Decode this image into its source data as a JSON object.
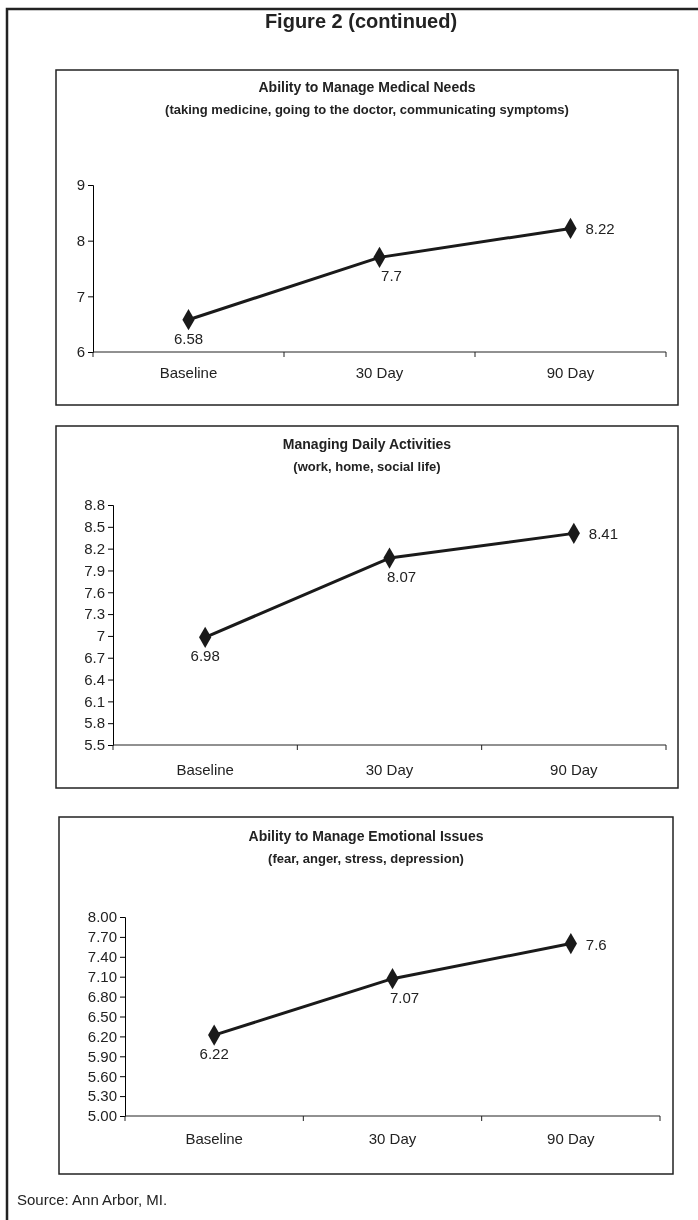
{
  "chart_data": [
    {
      "type": "line",
      "title": "Ability to Manage Medical Needs",
      "subtitle": "(taking medicine, going to the doctor,  communicating symptoms)",
      "annotations": [
        "Figure 2 (continued)"
      ],
      "categories": [
        "Baseline",
        "30 Day",
        "90 Day"
      ],
      "series": [
        {
          "color": "#1a1a1a",
          "values": [
            6.58,
            7.7,
            8.22
          ]
        }
      ],
      "ylim": [
        6,
        9
      ],
      "yticks": [
        6,
        7,
        8,
        9
      ],
      "data_labels": true,
      "marker": "diamond",
      "line_style": "solid"
    },
    {
      "type": "line",
      "title": "Managing Daily Activities",
      "subtitle": "(work, home, social life)",
      "categories": [
        "Baseline",
        "30 Day",
        "90 Day"
      ],
      "series": [
        {
          "color": "#1a1a1a",
          "values": [
            6.98,
            8.07,
            8.41
          ]
        }
      ],
      "ylim": [
        5.5,
        8.8
      ],
      "yticks": [
        5.5,
        5.8,
        6.1,
        6.4,
        6.7,
        7,
        7.3,
        7.6,
        7.9,
        8.2,
        8.5,
        8.8
      ],
      "data_labels": true,
      "marker": "diamond",
      "line_style": "solid"
    },
    {
      "type": "line",
      "title": "Ability to Manage Emotional Issues",
      "subtitle": "(fear, anger, stress, depression)",
      "annotations": [
        "Source: Ann Arbor, MI."
      ],
      "categories": [
        "Baseline",
        "30 Day",
        "90 Day"
      ],
      "series": [
        {
          "color": "#1a1a1a",
          "values": [
            6.22,
            7.07,
            7.6
          ]
        }
      ],
      "ylim": [
        5,
        8
      ],
      "yticks": [
        {
          "value": 5,
          "label": "5.00"
        },
        {
          "value": 5.3,
          "label": "5.30"
        },
        {
          "value": 5.6,
          "label": "5.60"
        },
        {
          "value": 5.9,
          "label": "5.90"
        },
        {
          "value": 6.2,
          "label": "6.20"
        },
        {
          "value": 6.5,
          "label": "6.50"
        },
        {
          "value": 6.8,
          "label": "6.80"
        },
        {
          "value": 7.1,
          "label": "7.10"
        },
        {
          "value": 7.4,
          "label": "7.40"
        },
        {
          "value": 7.7,
          "label": "7.70"
        },
        {
          "value": 8,
          "label": "8.00"
        }
      ],
      "data_labels": true,
      "marker": "diamond",
      "line_style": "solid"
    }
  ]
}
